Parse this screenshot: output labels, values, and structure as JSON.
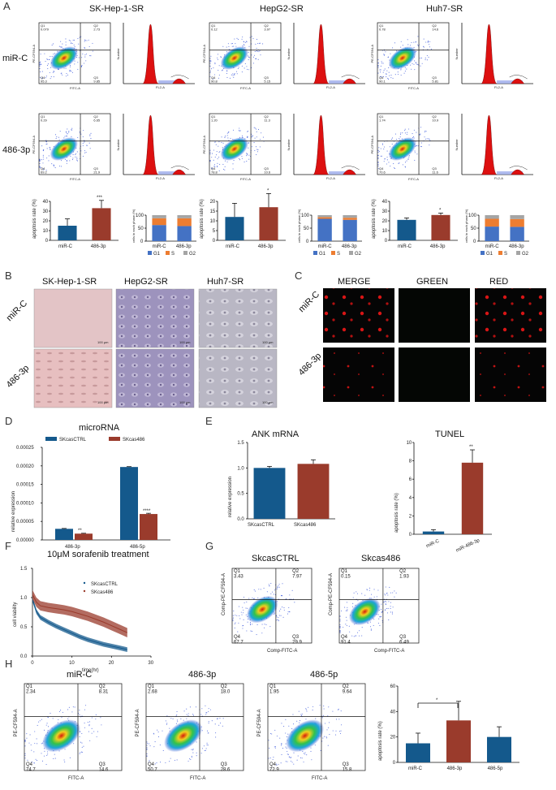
{
  "panels": {
    "A": "A",
    "B": "B",
    "C": "C",
    "D": "D",
    "E": "E",
    "F": "F",
    "G": "G",
    "H": "H"
  },
  "colors": {
    "navy": "#14598c",
    "brick": "#9a3b2c",
    "red": "#dd1010",
    "flowBlue": "#2f4fd8",
    "g1": "#4472c4",
    "s": "#ed7d31",
    "g2": "#a5a5a5"
  },
  "panelA": {
    "columns": [
      "SK-Hep-1-SR",
      "HepG2-SR",
      "Huh7-SR"
    ],
    "rows": [
      "miR-C",
      "486-3p"
    ],
    "flow_axis": {
      "x": "FITC-A",
      "y": "PE-CF594-A"
    },
    "hist_axis": {
      "x": "FL2-A",
      "y": "Number"
    },
    "quads": [
      [
        [
          "Q1",
          "0.079"
        ],
        [
          "Q2",
          "2.73"
        ],
        [
          "Q4",
          "95.3"
        ],
        [
          "Q3",
          "9.85"
        ]
      ],
      [
        [
          "Q1",
          "0.12"
        ],
        [
          "Q2",
          "3.97"
        ],
        [
          "Q4",
          "90.8"
        ],
        [
          "Q3",
          "5.15"
        ]
      ],
      [
        [
          "Q1",
          "0.78"
        ],
        [
          "Q2",
          "14.6"
        ],
        [
          "Q4",
          "90.1"
        ],
        [
          "Q3",
          "5.81"
        ]
      ],
      [
        [
          "Q1",
          "0.29"
        ],
        [
          "Q2",
          "6.65"
        ],
        [
          "Q4",
          "69.2"
        ],
        [
          "Q3",
          "21.9"
        ]
      ],
      [
        [
          "Q1",
          "1.20"
        ],
        [
          "Q2",
          "11.3"
        ],
        [
          "Q4",
          "78.8"
        ],
        [
          "Q3",
          "10.6"
        ]
      ],
      [
        [
          "Q1",
          "1.74"
        ],
        [
          "Q2",
          "10.9"
        ],
        [
          "Q4",
          "70.6"
        ],
        [
          "Q3",
          "11.6"
        ]
      ]
    ],
    "apoptosis": [
      {
        "ylabel": "apoptosis rate (%)",
        "categories": [
          "miR-C",
          "486-3p"
        ],
        "values": [
          15,
          33
        ],
        "errors": [
          7,
          8
        ],
        "ymax": 40,
        "ticks": [
          "0",
          "10",
          "20",
          "30",
          "40"
        ],
        "sig": "***"
      },
      {
        "ylabel": "apoptosis rate (%)",
        "categories": [
          "miR-C",
          "486-3p"
        ],
        "values": [
          12,
          17
        ],
        "errors": [
          7,
          7
        ],
        "ymax": 20,
        "ticks": [
          "0",
          "5",
          "10",
          "15",
          "20"
        ],
        "sig": "*"
      },
      {
        "ylabel": "apoptosis rate (%)",
        "categories": [
          "miR-C",
          "486-3p"
        ],
        "values": [
          21,
          26
        ],
        "errors": [
          2,
          2
        ],
        "ymax": 40,
        "ticks": [
          "0",
          "10",
          "20",
          "30",
          "40"
        ],
        "sig": "*"
      }
    ],
    "phase": [
      {
        "ylabel": "cells in each phase (%)",
        "categories": [
          "miR-C",
          "486-3p"
        ],
        "G1": [
          62,
          58
        ],
        "S": [
          26,
          30
        ],
        "G2": [
          12,
          12
        ],
        "ticks": [
          "0",
          "50",
          "100"
        ],
        "legend": [
          "G1",
          "S",
          "G2"
        ]
      },
      {
        "ylabel": "cells in each phase (%)",
        "categories": [
          "miR-C",
          "486-3p"
        ],
        "G1": [
          86,
          82
        ],
        "S": [
          6,
          8
        ],
        "G2": [
          8,
          10
        ],
        "ticks": [
          "0",
          "50",
          "100"
        ],
        "legend": [
          "G1",
          "S",
          "G2"
        ]
      },
      {
        "ylabel": "cells in each phase (%)",
        "categories": [
          "miR-C",
          "486-3p"
        ],
        "G1": [
          56,
          55
        ],
        "S": [
          30,
          30
        ],
        "G2": [
          14,
          15
        ],
        "ticks": [
          "0",
          "50",
          "100"
        ],
        "legend": [
          "G1",
          "S",
          "G2"
        ]
      }
    ]
  },
  "panelB": {
    "columns": [
      "SK-Hep-1-SR",
      "HepG2-SR",
      "Huh7-SR"
    ],
    "rows": [
      "miR-C",
      "486-3p"
    ],
    "scale": "100 µm"
  },
  "panelC": {
    "columns": [
      "MERGE",
      "GREEN",
      "RED"
    ],
    "rows": [
      "miR-C",
      "486-3p"
    ]
  },
  "chart_data": [
    {
      "panel": "D",
      "type": "bar",
      "title": "microRNA",
      "categories": [
        "486-3p",
        "486-5p"
      ],
      "series": [
        {
          "name": "SKcasCTRL",
          "values": [
            3e-05,
            0.000197
          ],
          "errors": [
            1e-06,
            1e-06
          ]
        },
        {
          "name": "SKcas486",
          "values": [
            1.7e-05,
            7e-05
          ],
          "errors": [
            1e-06,
            2e-06
          ]
        }
      ],
      "sig": [
        "**",
        "****"
      ],
      "ylabel": "relative expression",
      "ylim": [
        0,
        0.00025
      ],
      "ticks": [
        "0.00000",
        "0.00005",
        "0.00010",
        "0.00015",
        "0.00020",
        "0.00025"
      ]
    },
    {
      "panel": "E-left",
      "type": "bar",
      "title": "ANK mRNA",
      "categories": [
        "SKcasCTRL",
        "SKcas486"
      ],
      "values": [
        1.0,
        1.08
      ],
      "errors": [
        0.03,
        0.08
      ],
      "ylabel": "relative expression",
      "ylim": [
        0,
        1.5
      ],
      "ticks": [
        "0.0",
        "0.5",
        "1.0",
        "1.5"
      ]
    },
    {
      "panel": "E-right",
      "type": "bar",
      "title": "TUNEL",
      "categories": [
        "miR-C",
        "miR-486-3p"
      ],
      "values": [
        0.3,
        7.8
      ],
      "errors": [
        0.2,
        1.4
      ],
      "sig": "**",
      "ylabel": "apoptosis rate (%)",
      "ylim": [
        0,
        10
      ],
      "ticks": [
        "0",
        "2",
        "4",
        "6",
        "8",
        "10"
      ]
    },
    {
      "panel": "F",
      "type": "line",
      "title": "10μM sorafenib treatment",
      "xlabel": "time(hr)",
      "ylabel": "cell viability",
      "xlim": [
        0,
        30
      ],
      "ylim": [
        0,
        1.5
      ],
      "xticks": [
        "0",
        "10",
        "20",
        "30"
      ],
      "yticks": [
        "0.0",
        "0.5",
        "1.0",
        "1.5"
      ],
      "series": [
        {
          "name": "SKcasCTRL",
          "x": [
            0,
            1,
            2,
            4,
            6,
            8,
            10,
            12,
            14,
            16,
            18,
            20,
            22,
            24
          ],
          "y": [
            0.97,
            0.76,
            0.66,
            0.58,
            0.51,
            0.45,
            0.39,
            0.33,
            0.28,
            0.24,
            0.2,
            0.17,
            0.14,
            0.11
          ],
          "err": 0.04
        },
        {
          "name": "SKcas486",
          "x": [
            0,
            1,
            2,
            4,
            6,
            8,
            10,
            12,
            14,
            16,
            18,
            20,
            22,
            24
          ],
          "y": [
            1.05,
            0.92,
            0.86,
            0.83,
            0.81,
            0.79,
            0.76,
            0.72,
            0.68,
            0.63,
            0.58,
            0.52,
            0.46,
            0.4
          ],
          "err": 0.08
        }
      ]
    },
    {
      "panel": "H",
      "type": "bar",
      "categories": [
        "miR-C",
        "486-3p",
        "486-5p"
      ],
      "values": [
        15,
        33,
        20
      ],
      "errors": [
        8,
        15,
        8
      ],
      "sig": "*",
      "ylabel": "apoptosis rate (%)",
      "ylim": [
        0,
        60
      ],
      "ticks": [
        "0",
        "20",
        "40",
        "60"
      ]
    }
  ],
  "panelG": {
    "titles": [
      "SkcasCTRL",
      "Skcas486"
    ],
    "xaxis": "Comp-FITC-A",
    "yaxis": "Comp-PE-CF594-A",
    "quads": [
      [
        [
          "Q1",
          "3.43"
        ],
        [
          "Q2",
          "7.97"
        ],
        [
          "Q4",
          "67.7"
        ],
        [
          "Q3",
          "29.9"
        ]
      ],
      [
        [
          "Q1",
          "0.15"
        ],
        [
          "Q2",
          "1.93"
        ],
        [
          "Q4",
          "91.4"
        ],
        [
          "Q3",
          "6.49"
        ]
      ]
    ]
  },
  "panelH": {
    "titles": [
      "miR-C",
      "486-3p",
      "486-5p"
    ],
    "xaxis": "FITC-A",
    "yaxis": "PE-CF594-A",
    "quads": [
      [
        [
          "Q1",
          "2.34"
        ],
        [
          "Q2",
          "8.31"
        ],
        [
          "Q4",
          "74.7"
        ],
        [
          "Q3",
          "14.6"
        ]
      ],
      [
        [
          "Q1",
          "2.68"
        ],
        [
          "Q2",
          "18.0"
        ],
        [
          "Q4",
          "50.7"
        ],
        [
          "Q3",
          "28.6"
        ]
      ],
      [
        [
          "Q1",
          "1.95"
        ],
        [
          "Q2",
          "9.64"
        ],
        [
          "Q4",
          "72.9"
        ],
        [
          "Q3",
          "15.8"
        ]
      ]
    ]
  }
}
